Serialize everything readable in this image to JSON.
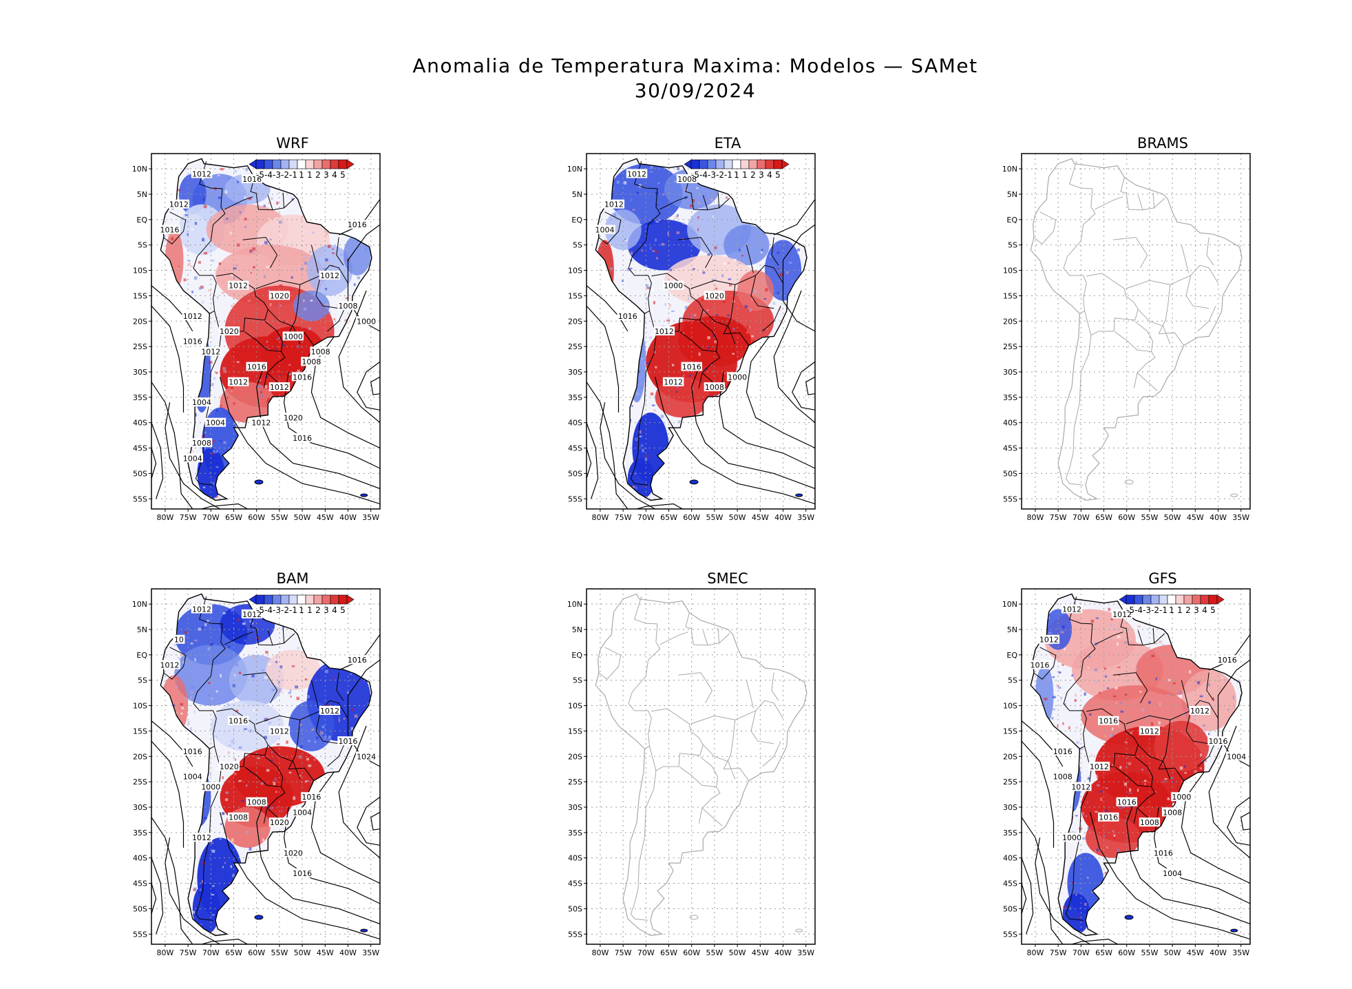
{
  "figure": {
    "title_line1": "Anomalia de Temperatura Maxima: Modelos — SAMet",
    "title_line2": "30/09/2024"
  },
  "lat_ticks": [
    "10N",
    "5N",
    "EQ",
    "5S",
    "10S",
    "15S",
    "20S",
    "25S",
    "30S",
    "35S",
    "40S",
    "45S",
    "50S",
    "55S"
  ],
  "lon_ticks": [
    "80W",
    "75W",
    "70W",
    "65W",
    "60W",
    "55W",
    "50W",
    "45W",
    "40W",
    "35W"
  ],
  "colorbar": {
    "labels": [
      "-5",
      "-4",
      "-3",
      "-2",
      "-1",
      "1",
      "1",
      "2",
      "3",
      "4",
      "5"
    ],
    "colors": [
      "#1a2fd6",
      "#3a55e0",
      "#6d86ea",
      "#a4b4f2",
      "#d3dbf8",
      "#ffffff",
      "#f8d3d3",
      "#f2a4a4",
      "#ea6d6d",
      "#e03a3a",
      "#d61a1a"
    ]
  },
  "panels": [
    {
      "name": "WRF",
      "has_data": true,
      "pattern": "wrf",
      "contours": [
        "1012",
        "1016",
        "1012",
        "1016",
        "1012",
        "1020",
        "1012",
        "1020",
        "1016",
        "1012",
        "1012",
        "1016",
        "1008",
        "1020",
        "1016",
        "1016",
        "1012",
        "1008",
        "1000",
        "1016",
        "1012",
        "1004",
        "1008",
        "1004",
        "1004",
        "1000",
        "1008",
        "1012"
      ]
    },
    {
      "name": "ETA",
      "has_data": true,
      "pattern": "eta",
      "contours": [
        "1012",
        "1008",
        "1012",
        "1004",
        "1000",
        "1020",
        "1016",
        "1012",
        "1016",
        "1012",
        "1008",
        "1000"
      ]
    },
    {
      "name": "BRAMS",
      "has_data": false,
      "pattern": "none",
      "contours": []
    },
    {
      "name": "BAM",
      "has_data": true,
      "pattern": "bam",
      "contours": [
        "1012",
        "1012",
        "10",
        "1012",
        "1016",
        "1012",
        "1016",
        "1020",
        "1008",
        "1008",
        "1020",
        "1004",
        "1016",
        "1020",
        "1016",
        "1016",
        "1012",
        "1016",
        "1024",
        "1004",
        "1000",
        "1012"
      ]
    },
    {
      "name": "SMEC",
      "has_data": false,
      "pattern": "none",
      "contours": []
    },
    {
      "name": "GFS",
      "has_data": true,
      "pattern": "gfs",
      "contours": [
        "1012",
        "1012",
        "1012",
        "1016",
        "1016",
        "1012",
        "1016",
        "1012",
        "1016",
        "1016",
        "1008",
        "1008",
        "1000",
        "1016",
        "1004",
        "1016",
        "1012",
        "1016",
        "1004",
        "1008",
        "1012",
        "1000"
      ]
    }
  ]
}
